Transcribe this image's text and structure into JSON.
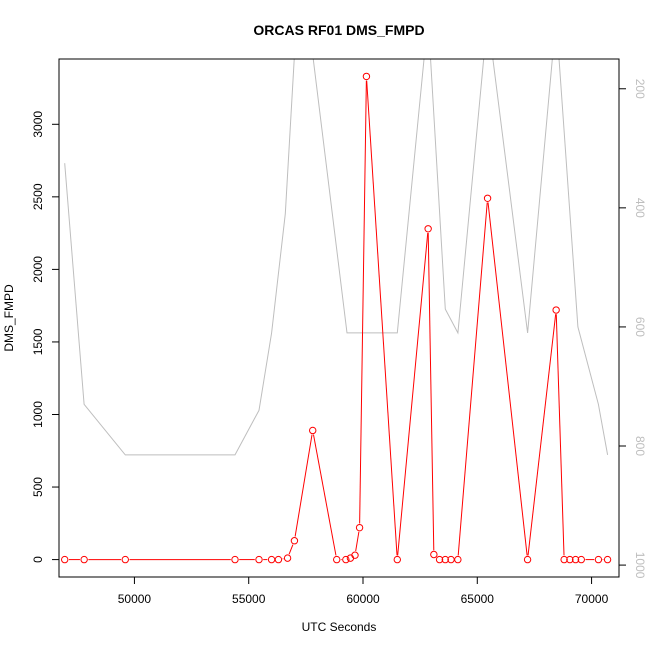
{
  "chart_data": {
    "type": "line",
    "title": "ORCAS RF01 DMS_FMPD",
    "xlabel": "UTC Seconds",
    "ylabel": "DMS_FMPD",
    "xlim": [
      46700,
      71200
    ],
    "ylim": [
      -120,
      3450
    ],
    "xticks": [
      50000,
      55000,
      60000,
      65000,
      70000
    ],
    "yticks": [
      0,
      500,
      1000,
      1500,
      2000,
      2500,
      3000
    ],
    "y2lim": [
      1020,
      150
    ],
    "y2ticks": [
      200,
      400,
      600,
      800,
      1000
    ],
    "grid": false,
    "colors": {
      "primary": "#ff0000",
      "secondary": "#bebebe",
      "axis": "#000000",
      "secondary_tick_labels": "#bebebe"
    },
    "series": [
      {
        "axis": "left",
        "style": "line-with-open-circles",
        "color": "#ff0000",
        "x": [
          46950,
          47800,
          49600,
          54400,
          55450,
          56000,
          56300,
          56700,
          57000,
          57800,
          58850,
          59250,
          59450,
          59650,
          59850,
          60150,
          61500,
          62850,
          63100,
          63350,
          63600,
          63850,
          64150,
          65450,
          67200,
          68450,
          68800,
          69050,
          69300,
          69550,
          70300,
          70700
        ],
        "y": [
          0,
          0,
          0,
          0,
          0,
          0,
          0,
          10,
          130,
          890,
          0,
          0,
          10,
          30,
          220,
          3330,
          0,
          2280,
          35,
          0,
          0,
          0,
          0,
          2490,
          0,
          1720,
          0,
          0,
          0,
          0,
          0,
          0
        ]
      },
      {
        "axis": "right",
        "style": "line",
        "color": "#bebebe",
        "x": [
          46950,
          47800,
          49600,
          54400,
          55450,
          56000,
          56600,
          57000,
          57600,
          59300,
          61500,
          62850,
          63600,
          64150,
          65450,
          67200,
          68450,
          69400,
          70300,
          70700
        ],
        "y": [
          325,
          730,
          815,
          815,
          740,
          610,
          410,
          145,
          80,
          610,
          610,
          80,
          570,
          610,
          80,
          610,
          80,
          600,
          730,
          815
        ]
      }
    ]
  }
}
